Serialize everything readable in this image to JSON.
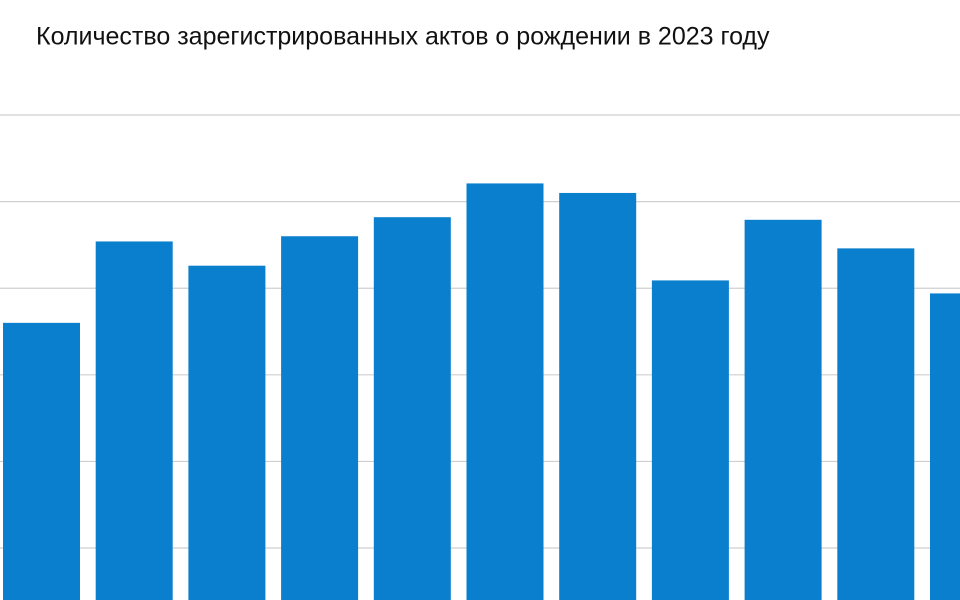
{
  "chart_data": {
    "type": "bar",
    "title": "Количество зарегистрированных актов о рождении в 2023 году",
    "values": [
      3.6,
      4.54,
      4.26,
      4.6,
      4.82,
      5.21,
      5.1,
      4.09,
      4.79,
      4.46,
      3.94
    ],
    "color": "#0a7fcd",
    "ylim": [
      0.4,
      6
    ],
    "yticks": [
      1,
      2,
      3,
      4,
      5,
      6
    ],
    "grid": true
  }
}
